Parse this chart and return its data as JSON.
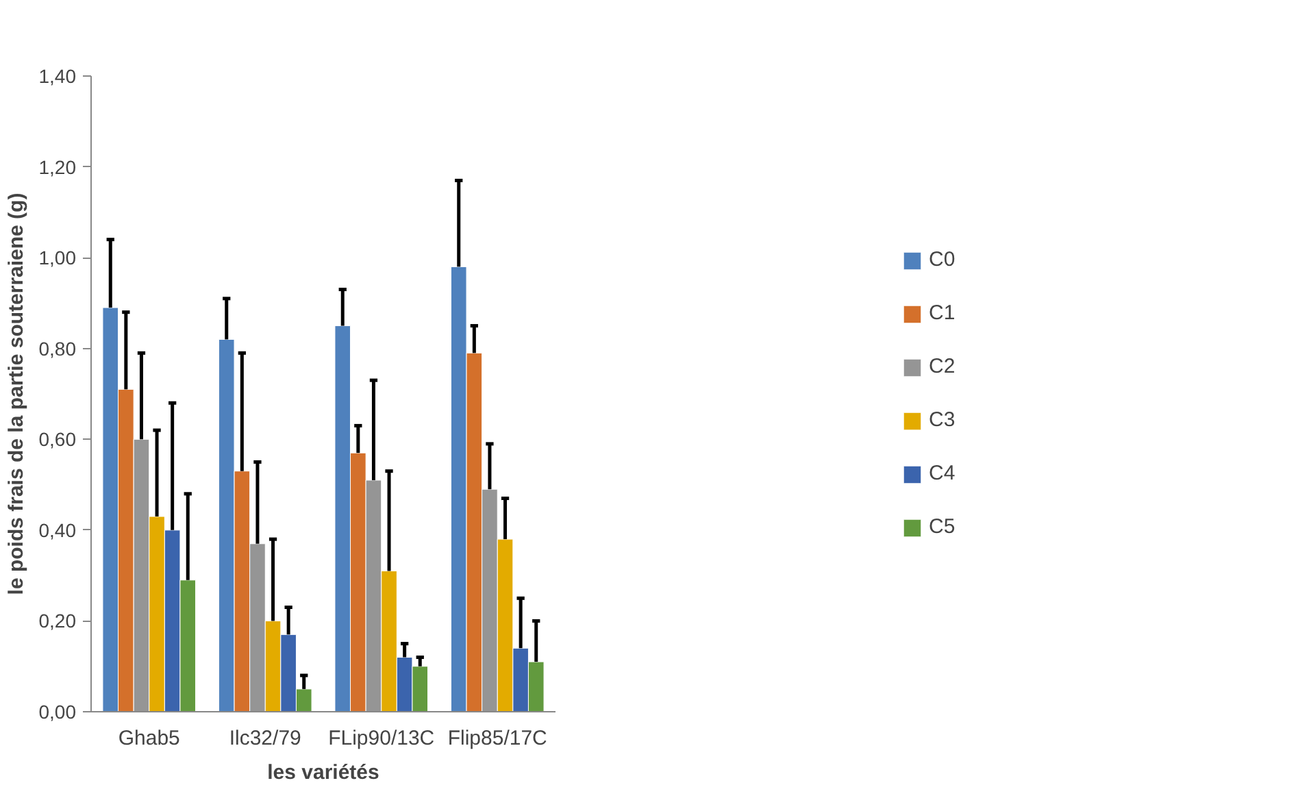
{
  "chart_data": {
    "type": "bar",
    "xlabel": "les variétés",
    "ylabel": "le poids frais de la partie souterraiene (g)",
    "categories": [
      "Ghab5",
      "Ilc32/79",
      "FLip90/13C",
      "Flip85/17C"
    ],
    "series": [
      {
        "name": "C0",
        "color": "#4f81bd",
        "values": [
          0.89,
          0.82,
          0.85,
          0.98
        ],
        "errors": [
          [
            0.89,
            1.04
          ],
          [
            0.82,
            0.91
          ],
          [
            0.85,
            0.93
          ],
          [
            0.98,
            1.17
          ]
        ]
      },
      {
        "name": "C1",
        "color": "#d4702b",
        "values": [
          0.71,
          0.53,
          0.57,
          0.79
        ],
        "errors": [
          [
            0.71,
            0.88
          ],
          [
            0.53,
            0.79
          ],
          [
            0.57,
            0.63
          ],
          [
            0.79,
            0.85
          ]
        ]
      },
      {
        "name": "C2",
        "color": "#959595",
        "values": [
          0.6,
          0.37,
          0.51,
          0.49
        ],
        "errors": [
          [
            0.6,
            0.79
          ],
          [
            0.37,
            0.55
          ],
          [
            0.51,
            0.73
          ],
          [
            0.49,
            0.59
          ]
        ]
      },
      {
        "name": "C3",
        "color": "#e3ab00",
        "values": [
          0.43,
          0.2,
          0.31,
          0.38
        ],
        "errors": [
          [
            0.43,
            0.62
          ],
          [
            0.2,
            0.38
          ],
          [
            0.31,
            0.53
          ],
          [
            0.38,
            0.47
          ]
        ]
      },
      {
        "name": "C4",
        "color": "#3b64ad",
        "values": [
          0.4,
          0.17,
          0.12,
          0.14
        ],
        "errors": [
          [
            0.4,
            0.68
          ],
          [
            0.17,
            0.23
          ],
          [
            0.12,
            0.15
          ],
          [
            0.14,
            0.25
          ]
        ]
      },
      {
        "name": "C5",
        "color": "#629a3e",
        "values": [
          0.29,
          0.05,
          0.1,
          0.11
        ],
        "errors": [
          [
            0.29,
            0.48
          ],
          [
            0.05,
            0.08
          ],
          [
            0.1,
            0.12
          ],
          [
            0.11,
            0.2
          ]
        ]
      }
    ],
    "ylim": [
      0,
      1.4
    ],
    "yticks": [
      {
        "value": 0,
        "label": "0,00"
      },
      {
        "value": 0.2,
        "label": "0,20"
      },
      {
        "value": 0.4,
        "label": "0,40"
      },
      {
        "value": 0.6,
        "label": "0,60"
      },
      {
        "value": 0.8,
        "label": "0,80"
      },
      {
        "value": 1.0,
        "label": "1,00"
      },
      {
        "value": 1.2,
        "label": "1,20"
      },
      {
        "value": 1.4,
        "label": "1,40"
      }
    ],
    "grid": false,
    "legend": "right"
  }
}
